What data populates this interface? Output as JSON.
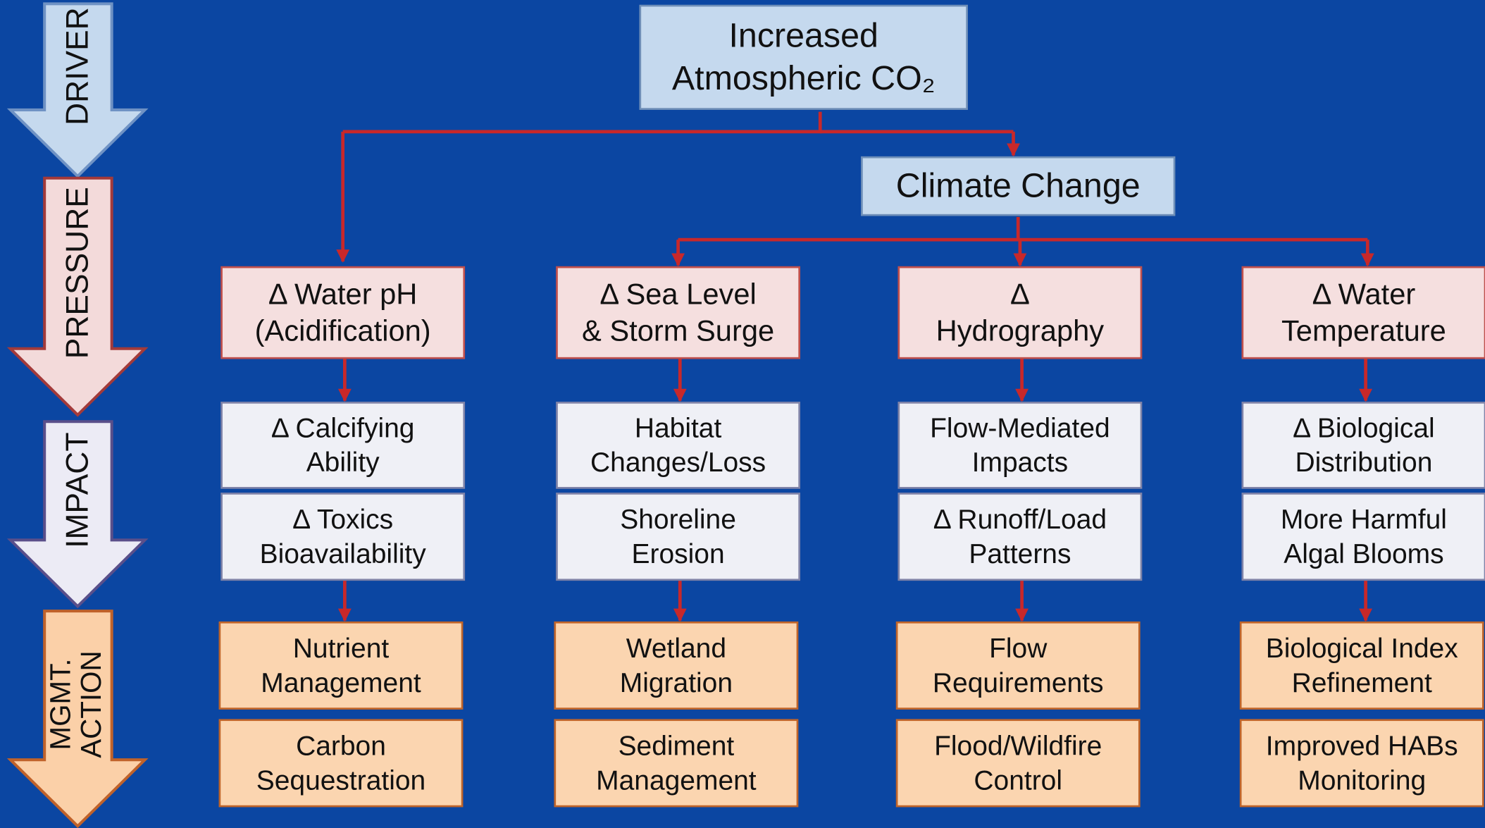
{
  "stages": [
    "DRIVER",
    "PRESSURE",
    "IMPACT",
    "MGMT. ACTION"
  ],
  "driver": {
    "lines": [
      "Increased",
      "Atmospheric CO₂"
    ]
  },
  "climate": {
    "lines": [
      "Climate Change"
    ]
  },
  "columns": [
    {
      "pressure": [
        "Δ Water pH",
        "(Acidification)"
      ],
      "impacts": [
        [
          "Δ Calcifying",
          "Ability"
        ],
        [
          "Δ Toxics",
          "Bioavailability"
        ]
      ],
      "actions": [
        [
          "Nutrient",
          "Management"
        ],
        [
          "Carbon",
          "Sequestration"
        ]
      ]
    },
    {
      "pressure": [
        "Δ Sea Level",
        "& Storm Surge"
      ],
      "impacts": [
        [
          "Habitat",
          "Changes/Loss"
        ],
        [
          "Shoreline",
          "Erosion"
        ]
      ],
      "actions": [
        [
          "Wetland",
          "Migration"
        ],
        [
          "Sediment",
          "Management"
        ]
      ]
    },
    {
      "pressure": [
        "Δ",
        "Hydrography"
      ],
      "impacts": [
        [
          "Flow-Mediated",
          "Impacts"
        ],
        [
          "Δ Runoff/Load",
          "Patterns"
        ]
      ],
      "actions": [
        [
          "Flow",
          "Requirements"
        ],
        [
          "Flood/Wildfire",
          "Control"
        ]
      ]
    },
    {
      "pressure": [
        "Δ Water",
        "Temperature"
      ],
      "impacts": [
        [
          "Δ Biological",
          "Distribution"
        ],
        [
          "More Harmful",
          "Algal Blooms"
        ]
      ],
      "actions": [
        [
          "Biological Index",
          "Refinement"
        ],
        [
          "Improved HABs",
          "Monitoring"
        ]
      ]
    }
  ]
}
